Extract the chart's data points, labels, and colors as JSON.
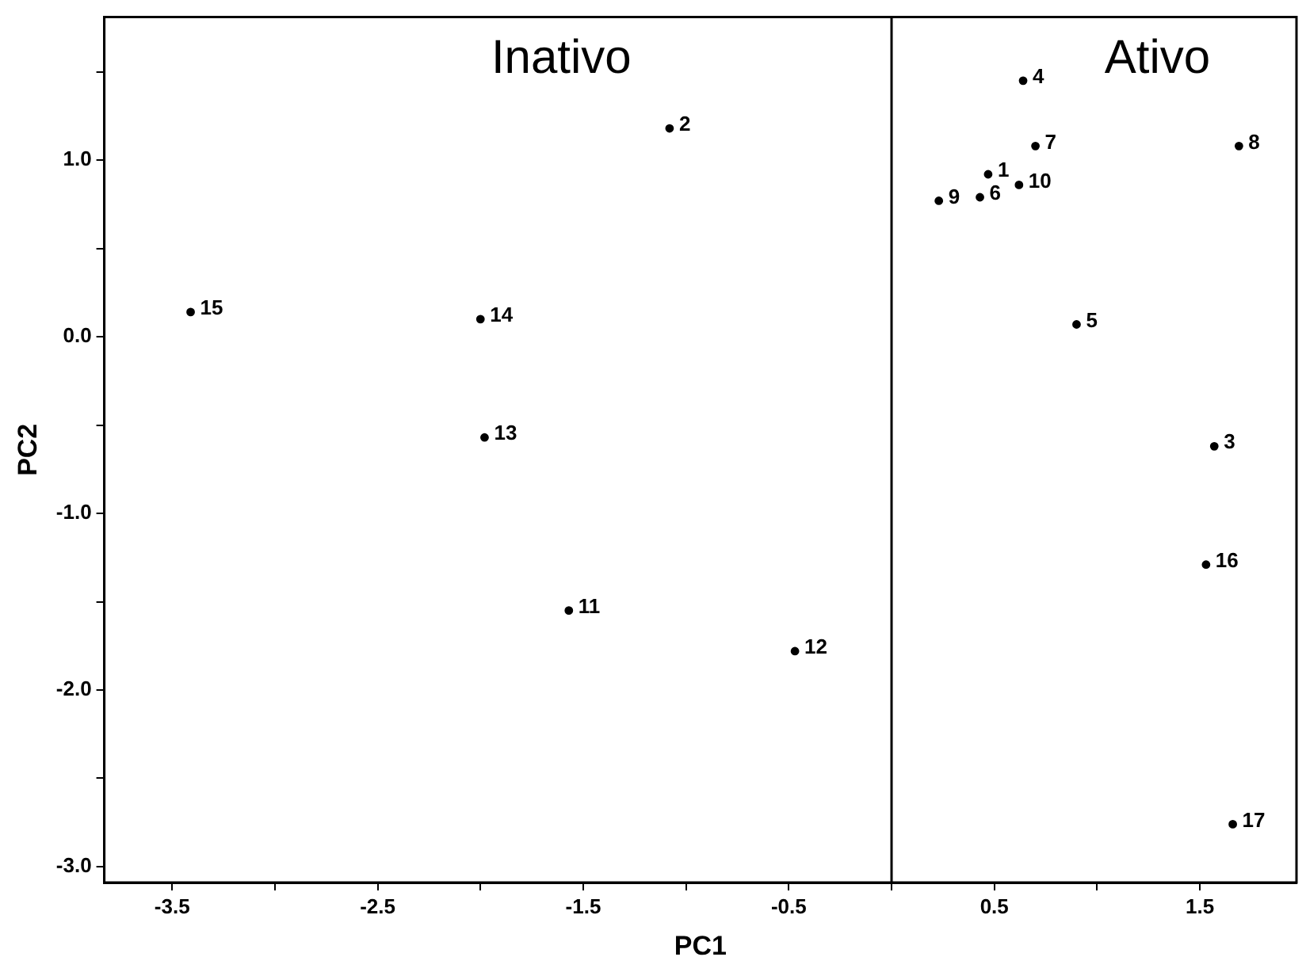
{
  "chart_data": {
    "type": "scatter",
    "xlabel": "PC1",
    "ylabel": "PC2",
    "x": [
      0.47,
      -1.08,
      1.57,
      0.64,
      0.9,
      0.43,
      0.7,
      1.69,
      0.23,
      0.62,
      -1.57,
      -0.47,
      -1.98,
      -2.0,
      -3.41,
      1.53,
      1.66
    ],
    "values": [
      0.92,
      1.18,
      -0.62,
      1.45,
      0.07,
      0.79,
      1.08,
      1.08,
      0.77,
      0.86,
      -1.55,
      -1.78,
      -0.57,
      0.1,
      0.14,
      -1.29,
      -2.76
    ],
    "color": "#000000",
    "marker": "circle",
    "grid": false,
    "legend": false,
    "xlim": [
      -3.83,
      1.97
    ],
    "xticks": [
      -3.5,
      {
        "value": -3.0,
        "label": null
      },
      -2.5,
      {
        "value": -2.0,
        "label": null
      },
      -1.5,
      {
        "value": -1.0,
        "label": null
      },
      -0.5,
      {
        "value": 0,
        "label": null
      },
      0.5,
      {
        "value": 1.0,
        "label": null
      },
      1.5
    ],
    "ylim": [
      -3.09,
      1.81
    ],
    "yticks": [
      {
        "value": -3,
        "label": "-3.0"
      },
      {
        "value": -2.5,
        "label": null
      },
      {
        "value": -2,
        "label": "-2.0"
      },
      {
        "value": -1.5,
        "label": null
      },
      {
        "value": -1,
        "label": "-1.0"
      },
      {
        "value": -0.5,
        "label": null
      },
      {
        "value": 0,
        "label": "0.0"
      },
      {
        "value": 0.5,
        "label": null
      },
      {
        "value": 1,
        "label": "1.0"
      },
      {
        "value": 1.5,
        "label": null
      }
    ],
    "ref_lines": [
      {
        "axis": "x",
        "value": 0,
        "color": "#000000",
        "line_style": "solid"
      }
    ],
    "annotations": [
      "Inativo",
      "Ativo",
      {
        "text": "1",
        "x": 0.47,
        "y": 0.92
      },
      {
        "text": "2",
        "x": -1.08,
        "y": 1.18
      },
      {
        "text": "3",
        "x": 1.57,
        "y": -0.62
      },
      {
        "text": "4",
        "x": 0.64,
        "y": 1.45
      },
      {
        "text": "5",
        "x": 0.9,
        "y": 0.07
      },
      {
        "text": "6",
        "x": 0.43,
        "y": 0.79
      },
      {
        "text": "7",
        "x": 0.7,
        "y": 1.08
      },
      {
        "text": "8",
        "x": 1.69,
        "y": 1.08
      },
      {
        "text": "9",
        "x": 0.23,
        "y": 0.77
      },
      {
        "text": "10",
        "x": 0.62,
        "y": 0.86
      },
      {
        "text": "11",
        "x": -1.57,
        "y": -1.55
      },
      {
        "text": "12",
        "x": -0.47,
        "y": -1.78
      },
      {
        "text": "13",
        "x": -1.98,
        "y": -0.57
      },
      {
        "text": "14",
        "x": -2.0,
        "y": 0.1
      },
      {
        "text": "15",
        "x": -3.41,
        "y": 0.14
      },
      {
        "text": "16",
        "x": 1.53,
        "y": -1.29
      },
      {
        "text": "17",
        "x": 1.66,
        "y": -2.76
      }
    ]
  }
}
